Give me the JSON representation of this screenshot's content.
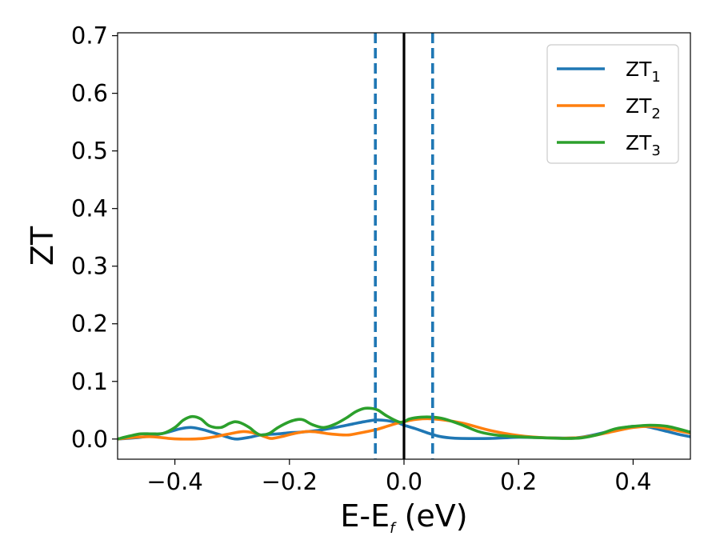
{
  "chart_data": {
    "type": "line",
    "title": "",
    "xlabel": "E-E",
    "xlabel_sub": "f",
    "xlabel_unit": " (eV)",
    "ylabel": "ZT",
    "xlim": [
      -0.5,
      0.5
    ],
    "ylim": [
      -0.035,
      0.705
    ],
    "xticks": [
      -0.4,
      -0.2,
      0.0,
      0.2,
      0.4
    ],
    "xtick_labels": [
      "−0.4",
      "−0.2",
      "0.0",
      "0.2",
      "0.4"
    ],
    "yticks": [
      0.0,
      0.1,
      0.2,
      0.3,
      0.4,
      0.5,
      0.6,
      0.7
    ],
    "ytick_labels": [
      "0.0",
      "0.1",
      "0.2",
      "0.3",
      "0.4",
      "0.5",
      "0.6",
      "0.7"
    ],
    "grid": false,
    "legend_position": "top-right",
    "vlines": [
      {
        "x": -0.05,
        "style": "dashed",
        "color": "#1f77b4"
      },
      {
        "x": 0.0,
        "style": "solid",
        "color": "#000000"
      },
      {
        "x": 0.05,
        "style": "dashed",
        "color": "#1f77b4"
      }
    ],
    "series": [
      {
        "name": "ZT",
        "subscript": "1",
        "color": "#1f77b4",
        "x": [
          -0.5,
          -0.46,
          -0.42,
          -0.39,
          -0.37,
          -0.35,
          -0.32,
          -0.3,
          -0.29,
          -0.27,
          -0.25,
          -0.22,
          -0.2,
          -0.18,
          -0.15,
          -0.12,
          -0.09,
          -0.07,
          -0.05,
          -0.03,
          -0.01,
          0.0,
          0.02,
          0.04,
          0.06,
          0.08,
          0.1,
          0.15,
          0.2,
          0.25,
          0.3,
          0.33,
          0.36,
          0.38,
          0.4,
          0.42,
          0.44,
          0.46,
          0.48,
          0.5
        ],
        "y": [
          0.0,
          0.003,
          0.01,
          0.018,
          0.02,
          0.016,
          0.007,
          0.001,
          0.0,
          0.003,
          0.007,
          0.009,
          0.011,
          0.012,
          0.015,
          0.02,
          0.026,
          0.03,
          0.033,
          0.032,
          0.028,
          0.024,
          0.018,
          0.011,
          0.005,
          0.002,
          0.001,
          0.001,
          0.003,
          0.002,
          0.002,
          0.007,
          0.014,
          0.019,
          0.022,
          0.022,
          0.018,
          0.013,
          0.008,
          0.004
        ]
      },
      {
        "name": "ZT",
        "subscript": "2",
        "color": "#ff7f0e",
        "x": [
          -0.5,
          -0.47,
          -0.44,
          -0.41,
          -0.39,
          -0.37,
          -0.35,
          -0.33,
          -0.3,
          -0.28,
          -0.26,
          -0.24,
          -0.23,
          -0.21,
          -0.19,
          -0.17,
          -0.15,
          -0.13,
          -0.1,
          -0.08,
          -0.05,
          -0.03,
          -0.01,
          0.0,
          0.02,
          0.05,
          0.1,
          0.15,
          0.2,
          0.25,
          0.3,
          0.33,
          0.36,
          0.4,
          0.43,
          0.46,
          0.5
        ],
        "y": [
          0.0,
          0.003,
          0.004,
          0.001,
          0.0,
          0.0,
          0.001,
          0.004,
          0.01,
          0.013,
          0.01,
          0.003,
          0.001,
          0.005,
          0.01,
          0.013,
          0.012,
          0.009,
          0.007,
          0.01,
          0.016,
          0.022,
          0.028,
          0.03,
          0.034,
          0.035,
          0.028,
          0.015,
          0.006,
          0.002,
          0.002,
          0.006,
          0.012,
          0.02,
          0.022,
          0.018,
          0.01
        ]
      },
      {
        "name": "ZT",
        "subscript": "3",
        "color": "#2ca02c",
        "x": [
          -0.5,
          -0.48,
          -0.46,
          -0.44,
          -0.42,
          -0.4,
          -0.385,
          -0.37,
          -0.355,
          -0.34,
          -0.32,
          -0.305,
          -0.295,
          -0.285,
          -0.27,
          -0.26,
          -0.25,
          -0.235,
          -0.22,
          -0.2,
          -0.185,
          -0.175,
          -0.16,
          -0.14,
          -0.12,
          -0.1,
          -0.085,
          -0.07,
          -0.055,
          -0.045,
          -0.03,
          -0.01,
          0.0,
          0.01,
          0.03,
          0.05,
          0.07,
          0.1,
          0.13,
          0.16,
          0.2,
          0.25,
          0.28,
          0.31,
          0.34,
          0.37,
          0.4,
          0.43,
          0.46,
          0.5
        ],
        "y": [
          0.0,
          0.005,
          0.009,
          0.009,
          0.01,
          0.02,
          0.033,
          0.039,
          0.035,
          0.023,
          0.02,
          0.027,
          0.03,
          0.028,
          0.02,
          0.012,
          0.007,
          0.01,
          0.02,
          0.03,
          0.034,
          0.033,
          0.025,
          0.02,
          0.026,
          0.037,
          0.047,
          0.053,
          0.053,
          0.05,
          0.04,
          0.03,
          0.03,
          0.035,
          0.038,
          0.038,
          0.035,
          0.025,
          0.013,
          0.007,
          0.004,
          0.002,
          0.001,
          0.002,
          0.008,
          0.018,
          0.022,
          0.024,
          0.022,
          0.012
        ]
      }
    ]
  }
}
